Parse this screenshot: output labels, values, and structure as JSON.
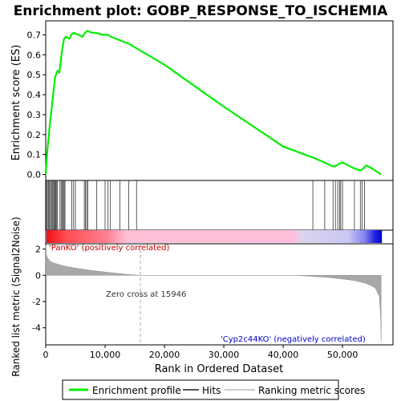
{
  "chart_data": {
    "type": "line",
    "title": "Enrichment plot: GOBP_RESPONSE_TO_ISCHEMIA",
    "enrichment_panel": {
      "ylabel": "Enrichment score (ES)",
      "ylim": [
        -0.03,
        0.77
      ],
      "yticks": [
        "0.0",
        "0.1",
        "0.2",
        "0.3",
        "0.4",
        "0.5",
        "0.6",
        "0.7"
      ],
      "ytick_values": [
        0.0,
        0.1,
        0.2,
        0.3,
        0.4,
        0.5,
        0.6,
        0.7
      ],
      "series": [
        {
          "name": "Enrichment profile",
          "color": "#00ee00",
          "x": [
            0,
            300,
            450,
            600,
            800,
            1000,
            1200,
            1400,
            1600,
            2000,
            2300,
            2500,
            2700,
            2900,
            3100,
            3400,
            4000,
            4300,
            4700,
            5500,
            6200,
            6600,
            7000,
            7800,
            8500,
            9500,
            10500,
            11000,
            14000,
            20000,
            30000,
            40000,
            45000,
            47000,
            48000,
            48500,
            49000,
            49500,
            50000,
            51000,
            52000,
            52500,
            53000,
            53500,
            54000,
            55000,
            56000,
            56500
          ],
          "y": [
            0.0,
            0.13,
            0.17,
            0.22,
            0.28,
            0.33,
            0.39,
            0.44,
            0.49,
            0.52,
            0.51,
            0.56,
            0.61,
            0.65,
            0.68,
            0.69,
            0.68,
            0.7,
            0.71,
            0.7,
            0.69,
            0.71,
            0.72,
            0.71,
            0.71,
            0.7,
            0.7,
            0.69,
            0.655,
            0.55,
            0.34,
            0.14,
            0.085,
            0.06,
            0.045,
            0.04,
            0.045,
            0.055,
            0.06,
            0.045,
            0.03,
            0.025,
            0.02,
            0.03,
            0.045,
            0.03,
            0.01,
            0.0
          ]
        }
      ]
    },
    "hits": [
      120,
      300,
      450,
      600,
      800,
      950,
      1100,
      1250,
      1400,
      1550,
      1700,
      1850,
      2000,
      2400,
      2600,
      2800,
      2950,
      3100,
      3250,
      4400,
      4700,
      5000,
      6500,
      6700,
      6900,
      7100,
      8600,
      10000,
      10500,
      10900,
      12500,
      14000,
      15300,
      45000,
      47000,
      48400,
      48800,
      49200,
      49500,
      49700,
      50000,
      52000,
      53000,
      53300,
      53700
    ],
    "ranked_metric_panel": {
      "ylabel": "Ranked list metric (Signal2Noise)",
      "xlabel": "Rank in Ordered Dataset",
      "ylim": [
        -5.3,
        2.4
      ],
      "yticks": [
        "2",
        "0",
        "-2",
        "-4"
      ],
      "ytick_values": [
        2,
        0,
        -2,
        -4
      ],
      "xlim": [
        0,
        58500
      ],
      "xticks": [
        "0",
        "10,000",
        "20,000",
        "30,000",
        "40,000",
        "50,000"
      ],
      "xtick_values": [
        0,
        10000,
        20000,
        30000,
        40000,
        50000
      ],
      "zero_cross_label": "Zero cross at 15946",
      "zero_cross_rank": 15946,
      "positive_label": "'PanKO' (positively correlated)",
      "negative_label": "'Cyp2c44KO' (negatively correlated)",
      "metric_profile": {
        "x": [
          0,
          100,
          300,
          600,
          1000,
          2000,
          3000,
          5000,
          8000,
          11000,
          14000,
          15946,
          30000,
          42000,
          45000,
          48000,
          50000,
          52000,
          54000,
          55500,
          56200,
          56400,
          56500
        ],
        "y": [
          2.3,
          1.6,
          1.35,
          1.15,
          1.0,
          0.85,
          0.72,
          0.55,
          0.35,
          0.2,
          0.06,
          0.0,
          0.0,
          0.0,
          -0.08,
          -0.18,
          -0.28,
          -0.4,
          -0.62,
          -0.95,
          -1.6,
          -3.0,
          -5.0
        ]
      }
    },
    "legend": {
      "placement": "bottom",
      "entries": [
        {
          "label": "Enrichment profile",
          "color": "#00ee00"
        },
        {
          "label": "Hits",
          "color": "#555555"
        },
        {
          "label": "Ranking metric scores",
          "color": "#cccccc"
        }
      ]
    }
  }
}
